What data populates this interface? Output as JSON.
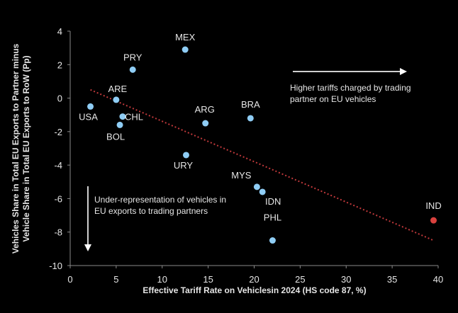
{
  "chart_data": {
    "type": "scatter",
    "title": "",
    "xlabel": "Effective Tariff Rate on Vehiclesin 2024 (HS code 87, %)",
    "ylabel": "Vehicles Share in Total EU Exports to Partner minus Vehicle Share in Total EU Exports to RoW (Pp)",
    "xlim": [
      0,
      40
    ],
    "ylim": [
      -10,
      4
    ],
    "xticks": [
      0,
      5,
      10,
      15,
      20,
      25,
      30,
      35,
      40
    ],
    "yticks": [
      4,
      2,
      0,
      -2,
      -4,
      -6,
      -8,
      -10
    ],
    "grid": false,
    "points": [
      {
        "label": "USA",
        "x": 2.2,
        "y": -0.5,
        "highlight": false
      },
      {
        "label": "ARE",
        "x": 5.0,
        "y": -0.1,
        "highlight": false
      },
      {
        "label": "PRY",
        "x": 6.8,
        "y": 1.7,
        "highlight": false
      },
      {
        "label": "MEX",
        "x": 12.5,
        "y": 2.9,
        "highlight": false
      },
      {
        "label": "CHL",
        "x": 5.7,
        "y": -1.1,
        "highlight": false
      },
      {
        "label": "BOL",
        "x": 5.4,
        "y": -1.6,
        "highlight": false
      },
      {
        "label": "ARG",
        "x": 14.7,
        "y": -1.5,
        "highlight": false
      },
      {
        "label": "BRA",
        "x": 19.6,
        "y": -1.2,
        "highlight": false
      },
      {
        "label": "URY",
        "x": 12.6,
        "y": -3.4,
        "highlight": false
      },
      {
        "label": "MYS",
        "x": 20.3,
        "y": -5.3,
        "highlight": false
      },
      {
        "label": "IDN",
        "x": 20.9,
        "y": -5.6,
        "highlight": false
      },
      {
        "label": "PHL",
        "x": 22.0,
        "y": -8.5,
        "highlight": false
      },
      {
        "label": "IND",
        "x": 39.5,
        "y": -7.3,
        "highlight": true
      }
    ],
    "trendline": {
      "x": [
        2.2,
        39.5
      ],
      "y": [
        0.5,
        -8.5
      ],
      "style": "dotted"
    },
    "colors": {
      "point": "#8fcdf5",
      "highlight": "#d9413e",
      "trend": "#c0393b",
      "axis": "#8a8a8a",
      "text": "#e6e6e6",
      "background": "#000000"
    },
    "annotations": {
      "right_arrow_text": "Higher tariffs charged by trading partner on EU vehicles",
      "down_arrow_text": "Under-representation of vehicles in EU exports to trading partners"
    }
  }
}
